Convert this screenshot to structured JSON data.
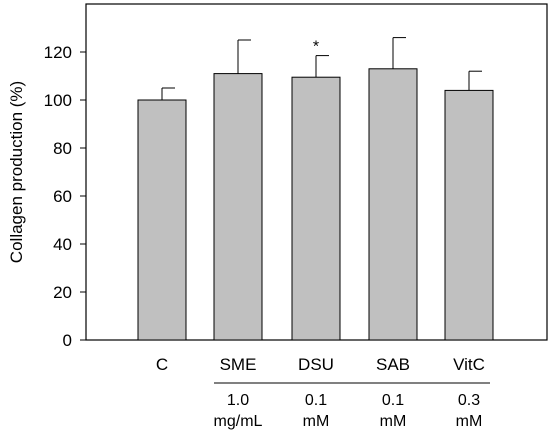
{
  "chart_data": {
    "type": "bar",
    "categories": [
      "C",
      "SME",
      "DSU",
      "SAB",
      "VitC"
    ],
    "values": [
      100,
      111,
      109.5,
      113,
      104
    ],
    "error": [
      5,
      14,
      9,
      13,
      8
    ],
    "significance": [
      "",
      "",
      "*",
      "",
      ""
    ],
    "dose_values": [
      "",
      "1.0",
      "0.1",
      "0.1",
      "0.3"
    ],
    "dose_units": [
      "",
      "mg/mL",
      "mM",
      "mM",
      "mM"
    ],
    "ylabel": "Collagen production (%)",
    "xlabel": "",
    "ylim": [
      0,
      140
    ],
    "yticks": [
      "0",
      "20",
      "40",
      "60",
      "80",
      "100",
      "120"
    ],
    "grid": false,
    "colors": {
      "bar_fill": "#c0c0c0",
      "bar_stroke": "#000000"
    }
  }
}
